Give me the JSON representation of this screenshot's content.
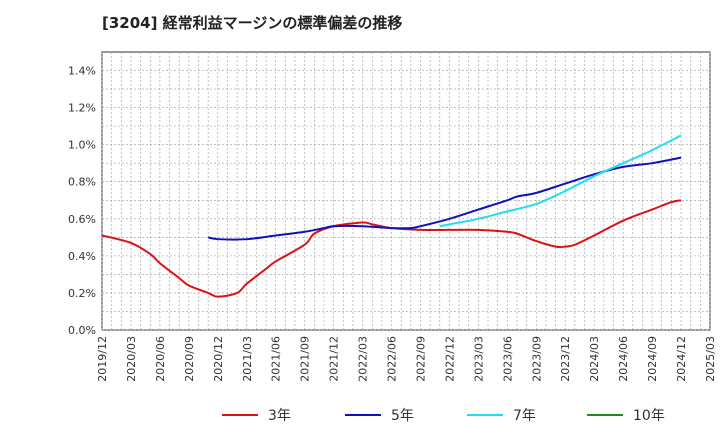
{
  "chart_data": {
    "type": "line",
    "title": "[3204]  経常利益マージンの標準偏差の推移",
    "xlabel": "",
    "ylabel": "",
    "ylim": [
      0,
      1.5
    ],
    "y_ticks": [
      "0.0%",
      "0.2%",
      "0.4%",
      "0.6%",
      "0.8%",
      "1.0%",
      "1.2%",
      "1.4%"
    ],
    "y_tick_values": [
      0,
      0.2,
      0.4,
      0.6,
      0.8,
      1.0,
      1.2,
      1.4
    ],
    "x_ticks": [
      "2019/12",
      "2020/03",
      "2020/06",
      "2020/09",
      "2020/12",
      "2021/03",
      "2021/06",
      "2021/09",
      "2021/12",
      "2022/03",
      "2022/06",
      "2022/09",
      "2022/12",
      "2023/03",
      "2023/06",
      "2023/09",
      "2023/12",
      "2024/03",
      "2024/06",
      "2024/09",
      "2024/12",
      "2025/03"
    ],
    "grid": true,
    "legend_position": "bottom",
    "series": [
      {
        "name": "3年",
        "color": "#dd1111",
        "points": [
          [
            "2019/12",
            0.51
          ],
          [
            "2020/03",
            0.47
          ],
          [
            "2020/05",
            0.41
          ],
          [
            "2020/06",
            0.36
          ],
          [
            "2020/08",
            0.28
          ],
          [
            "2020/09",
            0.24
          ],
          [
            "2020/11",
            0.2
          ],
          [
            "2020/12",
            0.18
          ],
          [
            "2021/02",
            0.2
          ],
          [
            "2021/03",
            0.25
          ],
          [
            "2021/05",
            0.33
          ],
          [
            "2021/06",
            0.37
          ],
          [
            "2021/09",
            0.46
          ],
          [
            "2021/10",
            0.52
          ],
          [
            "2021/12",
            0.56
          ],
          [
            "2022/03",
            0.58
          ],
          [
            "2022/04",
            0.57
          ],
          [
            "2022/06",
            0.55
          ],
          [
            "2022/09",
            0.54
          ],
          [
            "2022/12",
            0.54
          ],
          [
            "2023/03",
            0.54
          ],
          [
            "2023/06",
            0.53
          ],
          [
            "2023/07",
            0.52
          ],
          [
            "2023/09",
            0.48
          ],
          [
            "2023/11",
            0.45
          ],
          [
            "2023/12",
            0.45
          ],
          [
            "2024/01",
            0.46
          ],
          [
            "2024/03",
            0.51
          ],
          [
            "2024/06",
            0.59
          ],
          [
            "2024/09",
            0.65
          ],
          [
            "2024/11",
            0.69
          ],
          [
            "2024/12",
            0.7
          ]
        ]
      },
      {
        "name": "5年",
        "color": "#1111bb",
        "points": [
          [
            "2020/11",
            0.5
          ],
          [
            "2020/12",
            0.49
          ],
          [
            "2021/03",
            0.49
          ],
          [
            "2021/06",
            0.51
          ],
          [
            "2021/09",
            0.53
          ],
          [
            "2021/11",
            0.55
          ],
          [
            "2021/12",
            0.56
          ],
          [
            "2022/03",
            0.56
          ],
          [
            "2022/06",
            0.55
          ],
          [
            "2022/08",
            0.55
          ],
          [
            "2022/09",
            0.56
          ],
          [
            "2022/12",
            0.6
          ],
          [
            "2023/03",
            0.65
          ],
          [
            "2023/06",
            0.7
          ],
          [
            "2023/07",
            0.72
          ],
          [
            "2023/09",
            0.74
          ],
          [
            "2023/12",
            0.79
          ],
          [
            "2024/03",
            0.84
          ],
          [
            "2024/06",
            0.88
          ],
          [
            "2024/09",
            0.9
          ],
          [
            "2024/12",
            0.93
          ]
        ]
      },
      {
        "name": "7年",
        "color": "#22ddee",
        "points": [
          [
            "2022/11",
            0.56
          ],
          [
            "2022/12",
            0.57
          ],
          [
            "2023/03",
            0.6
          ],
          [
            "2023/06",
            0.64
          ],
          [
            "2023/09",
            0.68
          ],
          [
            "2023/12",
            0.75
          ],
          [
            "2024/03",
            0.83
          ],
          [
            "2024/06",
            0.9
          ],
          [
            "2024/09",
            0.97
          ],
          [
            "2024/12",
            1.05
          ]
        ]
      },
      {
        "name": "10年",
        "color": "#228822",
        "points": []
      }
    ]
  }
}
